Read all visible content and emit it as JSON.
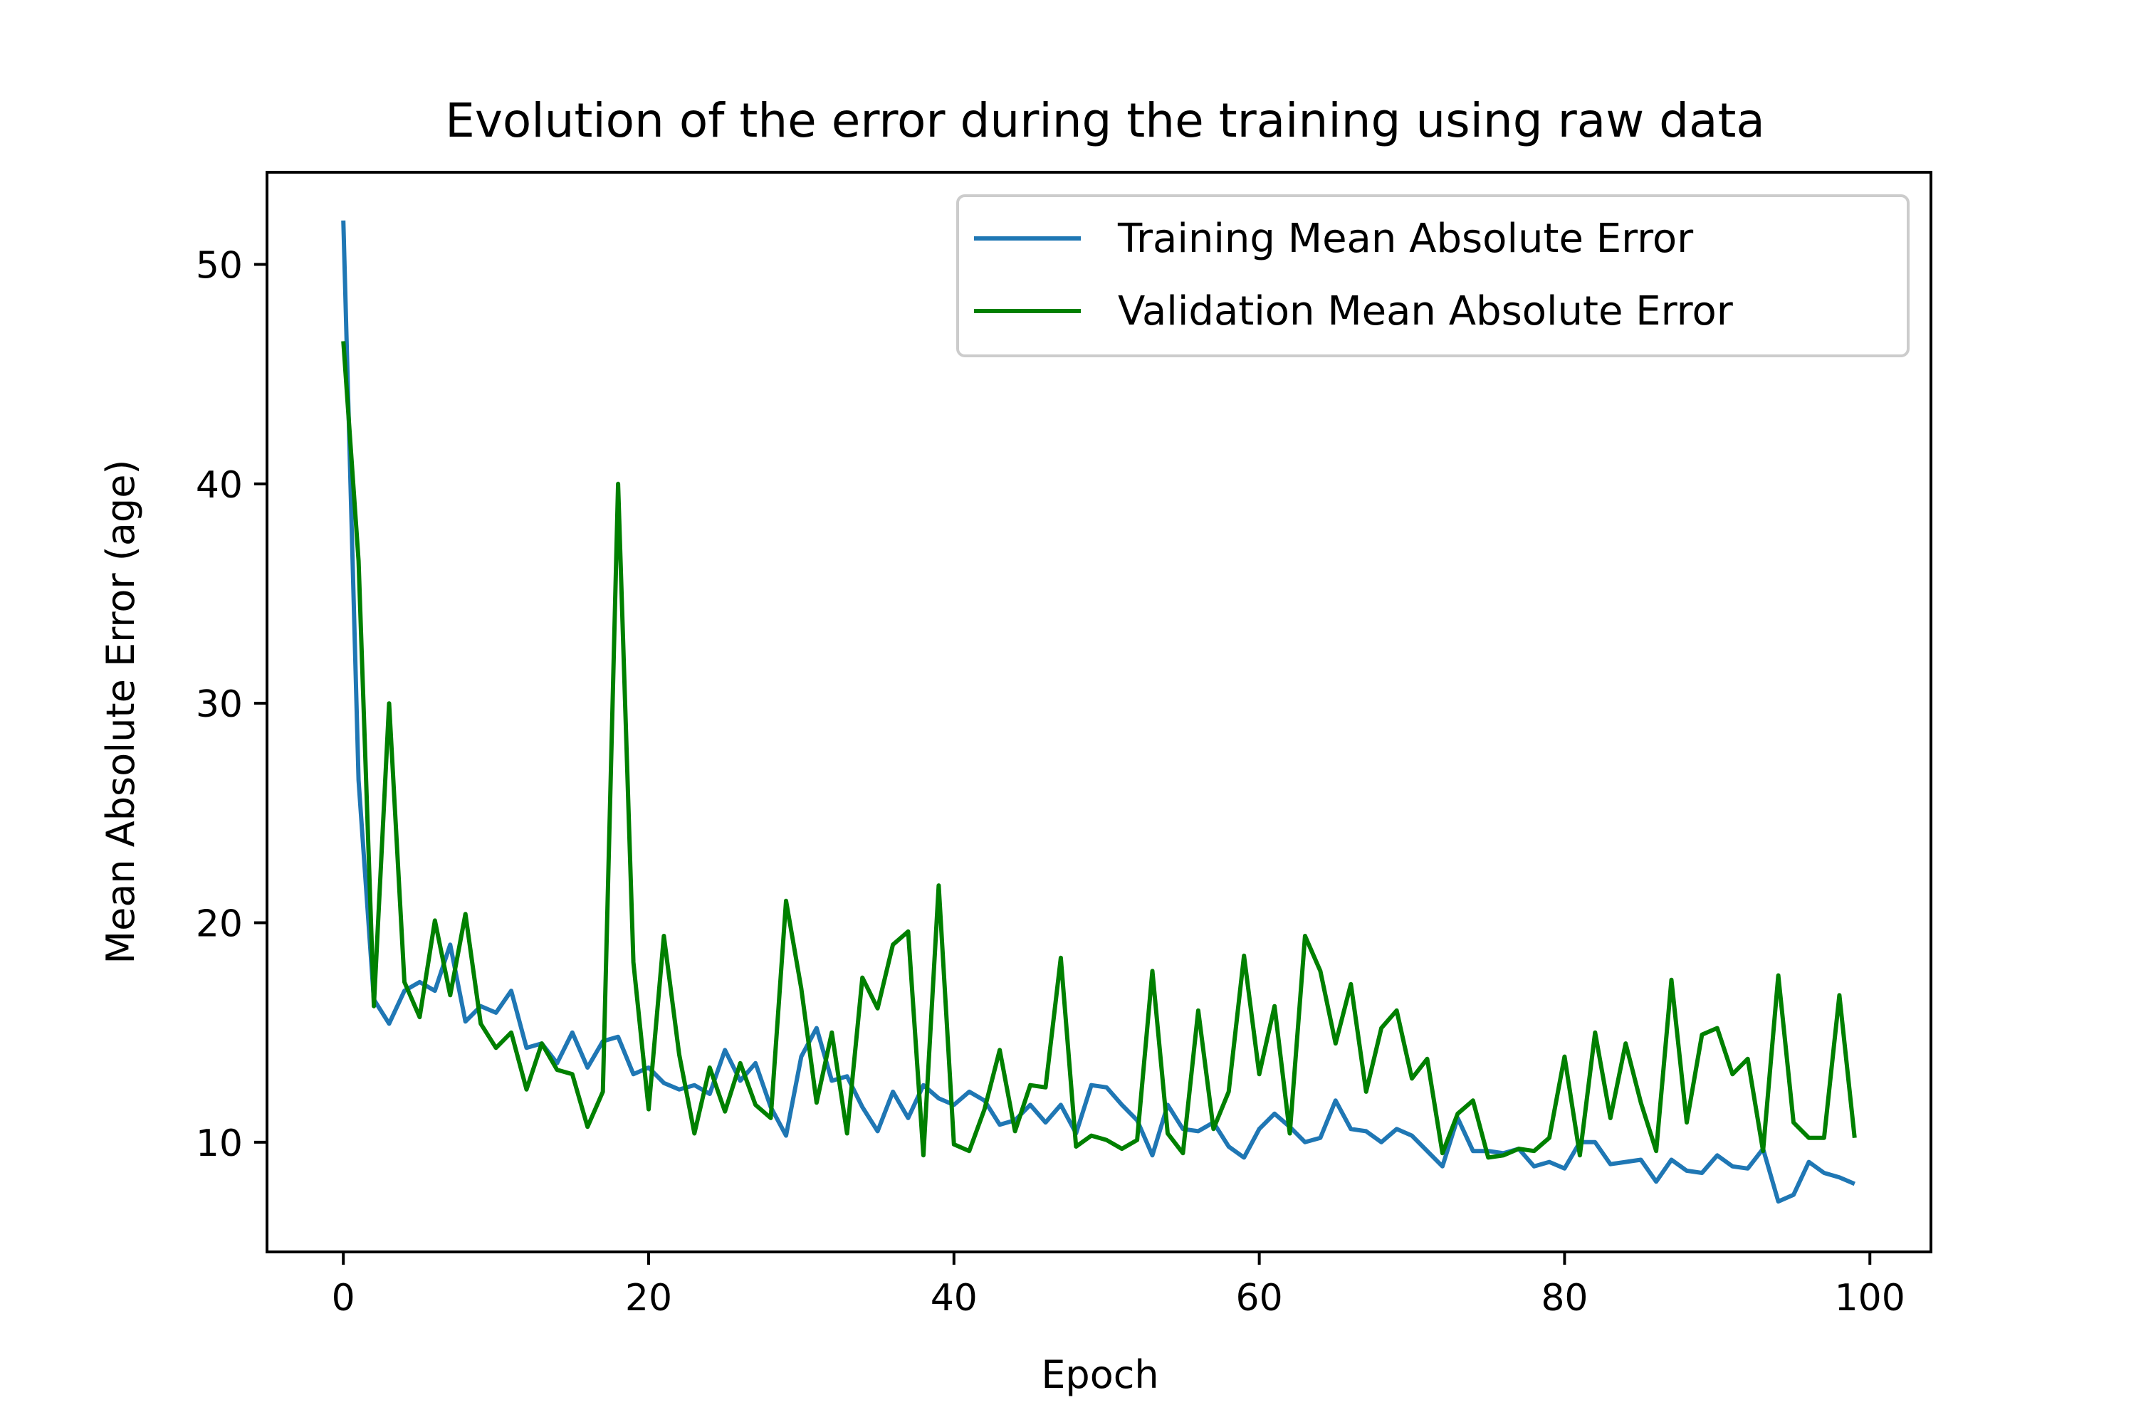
{
  "chart_data": {
    "type": "line",
    "title": "Evolution of the error during the training using raw data",
    "xlabel": "Epoch",
    "ylabel": "Mean Absolute Error (age)",
    "xlim": [
      -5,
      104
    ],
    "ylim": [
      5,
      54.2
    ],
    "xticks": [
      0,
      20,
      40,
      60,
      80,
      100
    ],
    "yticks": [
      10,
      20,
      30,
      40,
      50
    ],
    "grid": false,
    "legend_position": "top-right",
    "series": [
      {
        "name": "Training Mean Absolute Error",
        "color": "#1f77b4",
        "values": [
          52.0,
          26.5,
          16.5,
          15.4,
          16.9,
          17.3,
          16.9,
          19.0,
          15.5,
          16.2,
          15.9,
          16.9,
          14.3,
          14.5,
          13.6,
          15.0,
          13.4,
          14.6,
          14.8,
          13.1,
          13.4,
          12.7,
          12.4,
          12.6,
          12.2,
          14.2,
          12.8,
          13.6,
          11.6,
          10.3,
          13.9,
          15.2,
          12.8,
          13.0,
          11.6,
          10.5,
          12.3,
          11.1,
          12.6,
          12.0,
          11.7,
          12.3,
          11.9,
          10.8,
          11.0,
          11.7,
          10.9,
          11.7,
          10.4,
          12.6,
          12.5,
          11.7,
          11.0,
          9.4,
          11.7,
          10.6,
          10.5,
          10.9,
          9.8,
          9.3,
          10.6,
          11.3,
          10.7,
          10.0,
          10.2,
          11.9,
          10.6,
          10.5,
          10.0,
          10.6,
          10.3,
          9.6,
          8.9,
          11.1,
          9.6,
          9.6,
          9.5,
          9.7,
          8.9,
          9.1,
          8.8,
          10.0,
          10.0,
          9.0,
          9.1,
          9.2,
          8.2,
          9.2,
          8.7,
          8.6,
          9.4,
          8.9,
          8.8,
          9.7,
          7.3,
          7.6,
          9.1,
          8.6,
          8.4,
          8.1
        ]
      },
      {
        "name": "Validation Mean Absolute Error",
        "color": "#008000",
        "values": [
          46.5,
          36.5,
          16.2,
          30.0,
          17.3,
          15.7,
          20.1,
          16.7,
          20.4,
          15.4,
          14.3,
          15.0,
          12.4,
          14.5,
          13.3,
          13.1,
          10.7,
          12.3,
          40.0,
          18.2,
          11.5,
          19.4,
          14.0,
          10.4,
          13.4,
          11.4,
          13.6,
          11.7,
          11.1,
          21.0,
          17.0,
          11.8,
          15.0,
          10.4,
          17.5,
          16.1,
          19.0,
          19.6,
          9.4,
          21.7,
          9.9,
          9.6,
          11.5,
          14.2,
          10.5,
          12.6,
          12.5,
          18.4,
          9.8,
          10.3,
          10.1,
          9.7,
          10.1,
          17.8,
          10.4,
          9.5,
          16.0,
          10.6,
          12.3,
          18.5,
          13.1,
          16.2,
          10.4,
          19.4,
          17.8,
          14.5,
          17.2,
          12.3,
          15.2,
          16.0,
          12.9,
          13.8,
          9.5,
          11.3,
          11.9,
          9.3,
          9.4,
          9.7,
          9.6,
          10.2,
          13.9,
          9.4,
          15.0,
          11.1,
          14.5,
          11.8,
          9.6,
          17.4,
          10.9,
          14.9,
          15.2,
          13.1,
          13.8,
          9.6,
          17.6,
          10.9,
          10.2,
          10.2,
          16.7,
          10.2
        ]
      }
    ]
  }
}
